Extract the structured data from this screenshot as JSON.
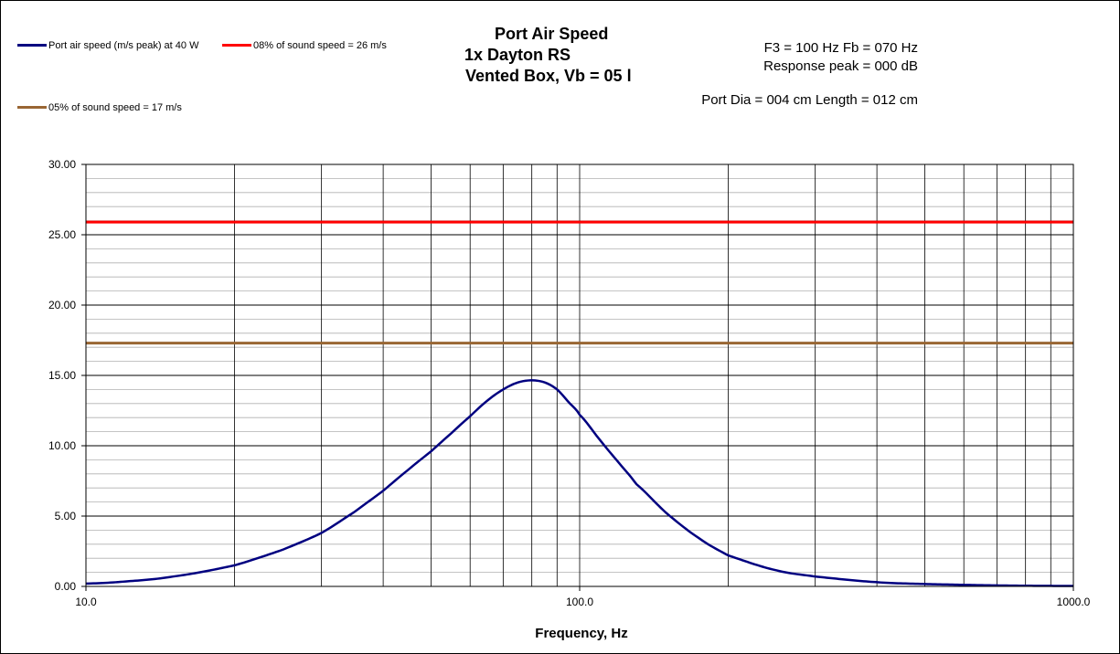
{
  "chart_data": {
    "type": "line",
    "title_lines": [
      "Port Air Speed",
      "1x Dayton RS",
      "Vented Box, Vb = 05 l"
    ],
    "info_lines": [
      "F3 = 100 Hz  Fb = 070 Hz",
      "Response  peak = 000 dB",
      "Port Dia = 004  cm  Length  = 012  cm"
    ],
    "xlabel": "Frequency, Hz",
    "ylabel": "",
    "x_scale": "log",
    "xlim": [
      10,
      1000
    ],
    "ylim": [
      0,
      30
    ],
    "x_tick_labels": [
      "10.0",
      "100.0",
      "1000.0"
    ],
    "y_tick_labels": [
      "0.00",
      "5.00",
      "10.00",
      "15.00",
      "20.00",
      "25.00",
      "30.00"
    ],
    "grid": "on",
    "legend_placement": "top-left",
    "series": [
      {
        "name": "Port air speed (m/s peak) at 40 W",
        "color": "#000080",
        "x": [
          10,
          12,
          15,
          20,
          25,
          30,
          35,
          40,
          45,
          50,
          55,
          60,
          65,
          70,
          75,
          80,
          85,
          90,
          95,
          100,
          110,
          120,
          130,
          150,
          175,
          200,
          250,
          300,
          400,
          500,
          700,
          1000
        ],
        "y": [
          0.2,
          0.35,
          0.7,
          1.5,
          2.6,
          3.8,
          5.3,
          6.8,
          8.3,
          9.6,
          10.9,
          12.1,
          13.2,
          14.0,
          14.5,
          14.65,
          14.5,
          14.0,
          13.1,
          12.2,
          10.4,
          8.8,
          7.3,
          5.2,
          3.4,
          2.2,
          1.15,
          0.7,
          0.3,
          0.17,
          0.07,
          0.03
        ]
      },
      {
        "name": "08% of sound speed = 26 m/s",
        "color": "#ff0000",
        "x": [
          10,
          1000
        ],
        "y": [
          25.9,
          25.9
        ]
      },
      {
        "name": "05% of sound speed = 17 m/s",
        "color": "#996633",
        "x": [
          10,
          1000
        ],
        "y": [
          17.3,
          17.3
        ]
      }
    ]
  }
}
